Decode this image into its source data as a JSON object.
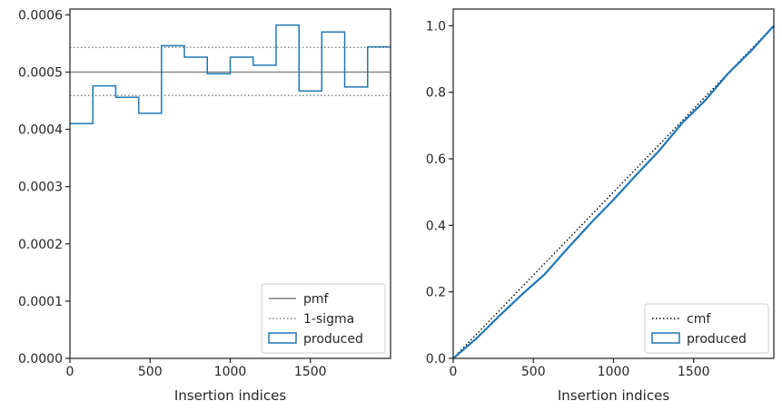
{
  "colors": {
    "produced": "#1f77b4",
    "pmf": "#808080",
    "sigma": "#808080",
    "cmf": "#000000",
    "axes": "#262626"
  },
  "chart_data": [
    {
      "type": "line",
      "title": "",
      "xlabel": "Insertion indices",
      "ylabel": "",
      "xlim": [
        0,
        2000
      ],
      "ylim": [
        0,
        0.00061
      ],
      "xticks": [
        {
          "value": 0,
          "label": "0"
        },
        {
          "value": 500,
          "label": "500"
        },
        {
          "value": 1000,
          "label": "1000"
        },
        {
          "value": 1500,
          "label": "1500"
        }
      ],
      "yticks": [
        {
          "value": 0,
          "label": "0.0000"
        },
        {
          "value": 0.0001,
          "label": "0.0001"
        },
        {
          "value": 0.0002,
          "label": "0.0002"
        },
        {
          "value": 0.0003,
          "label": "0.0003"
        },
        {
          "value": 0.0004,
          "label": "0.0004"
        },
        {
          "value": 0.0005,
          "label": "0.0005"
        },
        {
          "value": 0.0006,
          "label": "0.0006"
        }
      ],
      "histogram": {
        "name": "produced",
        "bin_edges": [
          0,
          143,
          286,
          429,
          571,
          714,
          857,
          1000,
          1143,
          1286,
          1429,
          1571,
          1714,
          1857,
          2000
        ],
        "values": [
          0.00041,
          0.000476,
          0.000456,
          0.000428,
          0.000546,
          0.000526,
          0.000497,
          0.000526,
          0.000512,
          0.000582,
          0.000467,
          0.00057,
          0.000474,
          0.000544
        ]
      },
      "hlines": [
        {
          "name": "pmf",
          "y": 0.0005,
          "style": "solid"
        },
        {
          "name": "1-sigma",
          "y": 0.000543,
          "style": "dotted"
        },
        {
          "name": "1-sigma-lower",
          "y": 0.000459,
          "style": "dotted"
        }
      ],
      "legend": {
        "position": "lower-right",
        "entries": [
          {
            "label": "pmf",
            "style": "solid"
          },
          {
            "label": "1-sigma",
            "style": "dotted"
          },
          {
            "label": "produced",
            "style": "box"
          }
        ]
      }
    },
    {
      "type": "line",
      "title": "",
      "xlabel": "Insertion indices",
      "ylabel": "",
      "xlim": [
        0,
        2000
      ],
      "ylim": [
        0,
        1.05
      ],
      "xticks": [
        {
          "value": 0,
          "label": "0"
        },
        {
          "value": 500,
          "label": "500"
        },
        {
          "value": 1000,
          "label": "1000"
        },
        {
          "value": 1500,
          "label": "1500"
        }
      ],
      "yticks": [
        {
          "value": 0,
          "label": "0.0"
        },
        {
          "value": 0.2,
          "label": "0.2"
        },
        {
          "value": 0.4,
          "label": "0.4"
        },
        {
          "value": 0.6,
          "label": "0.6"
        },
        {
          "value": 0.8,
          "label": "0.8"
        },
        {
          "value": 1.0,
          "label": "1.0"
        }
      ],
      "series": [
        {
          "name": "cmf",
          "style": "dotted",
          "x": [
            0,
            2000
          ],
          "y": [
            0,
            1.0
          ]
        },
        {
          "name": "produced",
          "style": "solid",
          "x": [
            0,
            143,
            286,
            429,
            571,
            714,
            857,
            1000,
            1143,
            1286,
            1429,
            1571,
            1714,
            1857,
            2000
          ],
          "y": [
            0,
            0.059,
            0.127,
            0.192,
            0.253,
            0.331,
            0.406,
            0.477,
            0.552,
            0.625,
            0.708,
            0.775,
            0.856,
            0.924,
            1.0
          ]
        }
      ],
      "legend": {
        "position": "lower-right",
        "entries": [
          {
            "label": "cmf",
            "style": "dotted"
          },
          {
            "label": "produced",
            "style": "box"
          }
        ]
      }
    }
  ]
}
